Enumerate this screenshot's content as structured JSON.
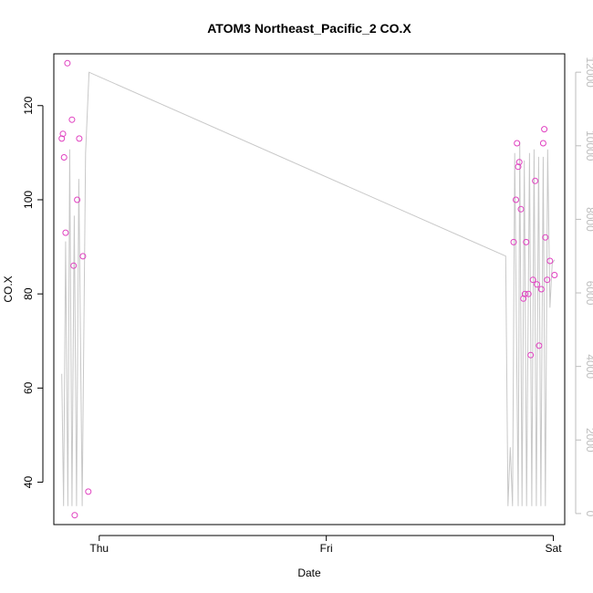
{
  "chart_data": {
    "type": "line",
    "title": "ATOM3 Northeast_Pacific_2 CO.X",
    "xlabel": "Date",
    "ylabel": "CO.X",
    "x_ticks": [
      "Thu",
      "Fri",
      "Sat"
    ],
    "y_ticks": [
      "40",
      "60",
      "80",
      "100",
      "120"
    ],
    "y2_ticks": [
      "0",
      "2000",
      "4000",
      "6000",
      "8000",
      "10000",
      "12000"
    ],
    "xlim": [
      -0.2,
      2.05
    ],
    "ylim": [
      31,
      131
    ],
    "y2lim": [
      -300,
      12500
    ],
    "colors": {
      "points": "#e040c0",
      "line": "#c8c8c8",
      "right_axis": "#bdbdbd"
    },
    "series": [
      {
        "type": "scatter",
        "axis": "left",
        "x": [
          -0.165,
          -0.16,
          -0.155,
          -0.148,
          -0.14,
          -0.12,
          -0.113,
          -0.108,
          -0.097,
          -0.088,
          -0.072,
          -0.048,
          1.825,
          1.835,
          1.84,
          1.845,
          1.85,
          1.857,
          1.868,
          1.875,
          1.88,
          1.89,
          1.9,
          1.91,
          1.92,
          1.928,
          1.937,
          1.947,
          1.955,
          1.96,
          1.965,
          1.973,
          1.985,
          2.005
        ],
        "y": [
          113,
          114,
          109,
          93,
          129,
          117,
          86,
          33,
          100,
          113,
          88,
          38,
          91,
          100,
          112,
          107,
          108,
          98,
          79,
          80,
          91,
          80,
          67,
          83,
          104,
          82,
          69,
          81,
          112,
          115,
          92,
          83,
          87,
          84
        ]
      },
      {
        "type": "line",
        "axis": "right",
        "x": [
          -0.165,
          -0.157,
          -0.148,
          -0.138,
          -0.13,
          -0.12,
          -0.11,
          -0.1,
          -0.09,
          -0.075,
          -0.06,
          -0.045,
          1.79,
          1.8,
          1.81,
          1.82,
          1.83,
          1.845,
          1.852,
          1.862,
          1.872,
          1.882,
          1.895,
          1.905,
          1.915,
          1.925,
          1.935,
          1.945,
          1.955,
          1.965,
          1.975,
          1.985,
          1.995,
          2.005
        ],
        "y": [
          3800,
          200,
          7400,
          200,
          9900,
          200,
          8100,
          200,
          9100,
          200,
          9800,
          12000,
          7000,
          200,
          1800,
          200,
          9800,
          200,
          10100,
          200,
          9600,
          200,
          9800,
          200,
          9900,
          200,
          9700,
          200,
          9700,
          200,
          9900,
          5600,
          6800,
          6900
        ]
      }
    ]
  }
}
